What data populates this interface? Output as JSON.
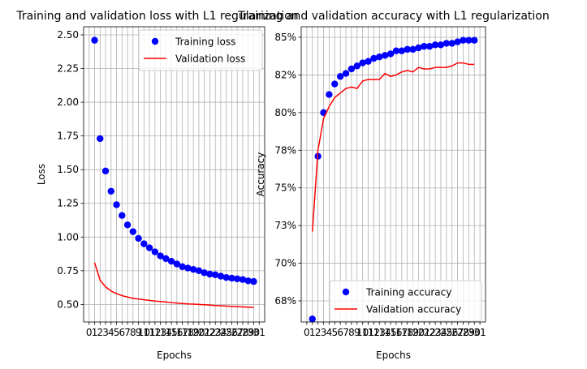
{
  "chart_data": [
    {
      "type": "line",
      "title": "Training and validation loss with L1 regularization",
      "xlabel": "Epochs",
      "ylabel": "Loss",
      "xlim": [
        -1,
        32
      ],
      "ylim": [
        0.37,
        2.56
      ],
      "x": [
        1,
        2,
        3,
        4,
        5,
        6,
        7,
        8,
        9,
        10,
        11,
        12,
        13,
        14,
        15,
        16,
        17,
        18,
        19,
        20,
        21,
        22,
        23,
        24,
        25,
        26,
        27,
        28,
        29,
        30
      ],
      "x_ticks": [
        0,
        1,
        2,
        3,
        4,
        5,
        6,
        7,
        8,
        9,
        10,
        11,
        12,
        13,
        14,
        15,
        16,
        17,
        18,
        19,
        20,
        21,
        22,
        23,
        24,
        25,
        26,
        27,
        28,
        29,
        30,
        31
      ],
      "y_ticks": [
        0.5,
        0.75,
        1.0,
        1.25,
        1.5,
        1.75,
        2.0,
        2.25,
        2.5
      ],
      "y_tick_labels": [
        "0.50",
        "0.75",
        "1.00",
        "1.25",
        "1.50",
        "1.75",
        "2.00",
        "2.25",
        "2.50"
      ],
      "grid": true,
      "legend_position": "upper-right",
      "series": [
        {
          "name": "Training loss",
          "style": "markers",
          "color": "#0000ff",
          "values": [
            2.46,
            1.73,
            1.49,
            1.34,
            1.24,
            1.16,
            1.09,
            1.04,
            0.99,
            0.95,
            0.92,
            0.89,
            0.86,
            0.84,
            0.82,
            0.8,
            0.78,
            0.77,
            0.76,
            0.75,
            0.735,
            0.725,
            0.72,
            0.71,
            0.7,
            0.695,
            0.69,
            0.685,
            0.675,
            0.67
          ]
        },
        {
          "name": "Validation loss",
          "style": "line",
          "color": "#ff0000",
          "values": [
            0.81,
            0.68,
            0.63,
            0.6,
            0.58,
            0.565,
            0.555,
            0.545,
            0.54,
            0.535,
            0.53,
            0.525,
            0.522,
            0.518,
            0.514,
            0.51,
            0.507,
            0.504,
            0.502,
            0.5,
            0.498,
            0.495,
            0.492,
            0.49,
            0.488,
            0.486,
            0.484,
            0.482,
            0.48,
            0.478
          ]
        }
      ]
    },
    {
      "type": "line",
      "title": "Training and validation accuracy with L1 regularization",
      "xlabel": "Epochs",
      "ylabel": "Accuracy",
      "xlim": [
        -1,
        32
      ],
      "ylim": [
        0.661,
        0.857
      ],
      "x": [
        1,
        2,
        3,
        4,
        5,
        6,
        7,
        8,
        9,
        10,
        11,
        12,
        13,
        14,
        15,
        16,
        17,
        18,
        19,
        20,
        21,
        22,
        23,
        24,
        25,
        26,
        27,
        28,
        29,
        30
      ],
      "x_ticks": [
        0,
        1,
        2,
        3,
        4,
        5,
        6,
        7,
        8,
        9,
        10,
        11,
        12,
        13,
        14,
        15,
        16,
        17,
        18,
        19,
        20,
        21,
        22,
        23,
        24,
        25,
        26,
        27,
        28,
        29,
        30,
        31
      ],
      "y_ticks": [
        0.675,
        0.7,
        0.725,
        0.75,
        0.775,
        0.8,
        0.825,
        0.85
      ],
      "y_tick_labels": [
        "68%",
        "70%",
        "73%",
        "75%",
        "78%",
        "80%",
        "82%",
        "85%"
      ],
      "grid": true,
      "legend_position": "lower-right",
      "series": [
        {
          "name": "Training accuracy",
          "style": "markers",
          "color": "#0000ff",
          "values": [
            0.663,
            0.771,
            0.8,
            0.812,
            0.819,
            0.824,
            0.826,
            0.829,
            0.831,
            0.833,
            0.834,
            0.836,
            0.837,
            0.838,
            0.839,
            0.841,
            0.841,
            0.842,
            0.842,
            0.843,
            0.844,
            0.844,
            0.845,
            0.845,
            0.846,
            0.846,
            0.847,
            0.848,
            0.848,
            0.848
          ]
        },
        {
          "name": "Validation accuracy",
          "style": "line",
          "color": "#ff0000",
          "values": [
            0.721,
            0.775,
            0.796,
            0.804,
            0.81,
            0.813,
            0.816,
            0.817,
            0.816,
            0.821,
            0.822,
            0.822,
            0.822,
            0.826,
            0.824,
            0.825,
            0.827,
            0.828,
            0.827,
            0.83,
            0.829,
            0.829,
            0.83,
            0.83,
            0.83,
            0.831,
            0.833,
            0.833,
            0.832,
            0.832
          ]
        }
      ]
    }
  ]
}
